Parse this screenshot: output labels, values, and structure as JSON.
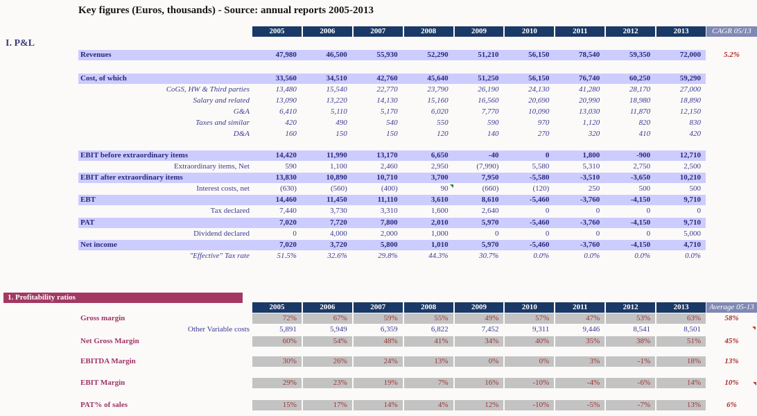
{
  "title": "Key figures (Euros, thousands) - Source: annual reports 2005-2013",
  "years": [
    "2005",
    "2006",
    "2007",
    "2008",
    "2009",
    "2010",
    "2011",
    "2012",
    "2013"
  ],
  "colors": {
    "header_navy": "#1b3966",
    "band_lavender": "#ccccff",
    "extra_header_slate": "#8088b4",
    "banner_maroon": "#a33963",
    "gray_cell": "#c3c3c3",
    "blue_text": "#29297b",
    "maroon_label": "#a03366",
    "red_value": "#ac2b2b",
    "comment_green": "#1d8a1d"
  },
  "pl": {
    "section_label": "I. P&L",
    "extra_header": "CAGR 05/13",
    "rows": [
      {
        "label": "Revenues",
        "type": "band",
        "values": [
          "47,980",
          "46,500",
          "55,930",
          "52,290",
          "51,210",
          "56,150",
          "78,540",
          "59,350",
          "72,000"
        ],
        "extra": "5.2%"
      },
      {
        "label": "Cost, of which",
        "type": "band",
        "values": [
          "33,560",
          "34,510",
          "42,760",
          "45,640",
          "51,250",
          "56,150",
          "76,740",
          "60,250",
          "59,290"
        ],
        "extra": ""
      },
      {
        "label": "CoGS, HW & Third parties",
        "type": "subi",
        "values": [
          "13,480",
          "15,540",
          "22,770",
          "23,790",
          "26,190",
          "24,130",
          "41,280",
          "28,170",
          "27,000"
        ],
        "extra": ""
      },
      {
        "label": "Salary and related",
        "type": "subi",
        "values": [
          "13,090",
          "13,220",
          "14,130",
          "15,160",
          "16,560",
          "20,690",
          "20,990",
          "18,980",
          "18,890"
        ],
        "extra": ""
      },
      {
        "label": "G&A",
        "type": "subi",
        "values": [
          "6,410",
          "5,110",
          "5,170",
          "6,020",
          "7,770",
          "10,090",
          "13,030",
          "11,870",
          "12,150"
        ],
        "extra": ""
      },
      {
        "label": "Taxes and similar",
        "type": "subi",
        "values": [
          "420",
          "490",
          "540",
          "550",
          "590",
          "970",
          "1,120",
          "820",
          "830"
        ],
        "extra": ""
      },
      {
        "label": "D&A",
        "type": "subi",
        "values": [
          "160",
          "150",
          "150",
          "120",
          "140",
          "270",
          "320",
          "410",
          "420"
        ],
        "extra": ""
      },
      {
        "label": "EBIT before extraordinary items",
        "type": "band",
        "values": [
          "14,420",
          "11,990",
          "13,170",
          "6,650",
          "-40",
          "0",
          "1,800",
          "-900",
          "12,710"
        ],
        "extra": ""
      },
      {
        "label": "Extraordinary items, Net",
        "type": "subp",
        "values": [
          "590",
          "1,100",
          "2,460",
          "2,950",
          "(7,990)",
          "5,580",
          "5,310",
          "2,750",
          "2,500"
        ],
        "extra": ""
      },
      {
        "label": "EBIT after extraordinary items",
        "type": "band",
        "values": [
          "13,830",
          "10,890",
          "10,710",
          "3,700",
          "7,950",
          "-5,580",
          "-3,510",
          "-3,650",
          "10,210"
        ],
        "extra": ""
      },
      {
        "label": "Interest costs, net",
        "type": "subp",
        "values": [
          "(630)",
          "(560)",
          "(400)",
          "90",
          "(660)",
          "(120)",
          "250",
          "500",
          "500"
        ],
        "extra": "",
        "marker": {
          "color": "green",
          "col": 3
        }
      },
      {
        "label": "EBT",
        "type": "band",
        "values": [
          "14,460",
          "11,450",
          "11,110",
          "3,610",
          "8,610",
          "-5,460",
          "-3,760",
          "-4,150",
          "9,710"
        ],
        "extra": ""
      },
      {
        "label": "Tax declared",
        "type": "subp",
        "values": [
          "7,440",
          "3,730",
          "3,310",
          "1,600",
          "2,640",
          "0",
          "0",
          "0",
          "0"
        ],
        "extra": ""
      },
      {
        "label": "PAT",
        "type": "band",
        "values": [
          "7,020",
          "7,720",
          "7,800",
          "2,010",
          "5,970",
          "-5,460",
          "-3,760",
          "-4,150",
          "9,710"
        ],
        "extra": ""
      },
      {
        "label": "Dividend declared",
        "type": "subp",
        "values": [
          "0",
          "4,000",
          "2,000",
          "1,000",
          "0",
          "0",
          "0",
          "0",
          "5,000"
        ],
        "extra": ""
      },
      {
        "label": "Net income",
        "type": "band",
        "values": [
          "7,020",
          "3,720",
          "5,800",
          "1,010",
          "5,970",
          "-5,460",
          "-3,760",
          "-4,150",
          "4,710"
        ],
        "extra": ""
      },
      {
        "label": "\"Effective\" Tax rate",
        "type": "subi",
        "values": [
          "51.5%",
          "32.6%",
          "29.8%",
          "44.3%",
          "30.7%",
          "0.0%",
          "0.0%",
          "0.0%",
          "0.0%"
        ],
        "extra": ""
      }
    ]
  },
  "ratios": {
    "banner": "1. Profitability ratios",
    "extra_header": "Average 05-13",
    "rows": [
      {
        "label": "Gross margin",
        "type": "ratio",
        "values": [
          "72%",
          "67%",
          "59%",
          "55%",
          "49%",
          "57%",
          "47%",
          "53%",
          "63%"
        ],
        "extra": "58%"
      },
      {
        "label": "Other Variable costs",
        "type": "plain2",
        "values": [
          "5,891",
          "5,949",
          "6,359",
          "6,822",
          "7,452",
          "9,311",
          "9,446",
          "8,541",
          "8,501"
        ],
        "extra": ""
      },
      {
        "label": "Net Gross Margin",
        "type": "ratio",
        "values": [
          "60%",
          "54%",
          "48%",
          "41%",
          "34%",
          "40%",
          "35%",
          "38%",
          "51%"
        ],
        "extra": "45%"
      },
      {
        "label": "EBITDA Margin",
        "type": "ratio",
        "values": [
          "30%",
          "26%",
          "24%",
          "13%",
          "0%",
          "0%",
          "3%",
          "-1%",
          "18%"
        ],
        "extra": "13%"
      },
      {
        "label": "EBIT Margin",
        "type": "ratio",
        "values": [
          "29%",
          "23%",
          "19%",
          "7%",
          "16%",
          "-10%",
          "-4%",
          "-6%",
          "14%"
        ],
        "extra": "10%"
      },
      {
        "label": "PAT% of sales",
        "type": "ratio",
        "values": [
          "15%",
          "17%",
          "14%",
          "4%",
          "12%",
          "-10%",
          "-5%",
          "-7%",
          "13%"
        ],
        "extra": "6%"
      }
    ]
  }
}
